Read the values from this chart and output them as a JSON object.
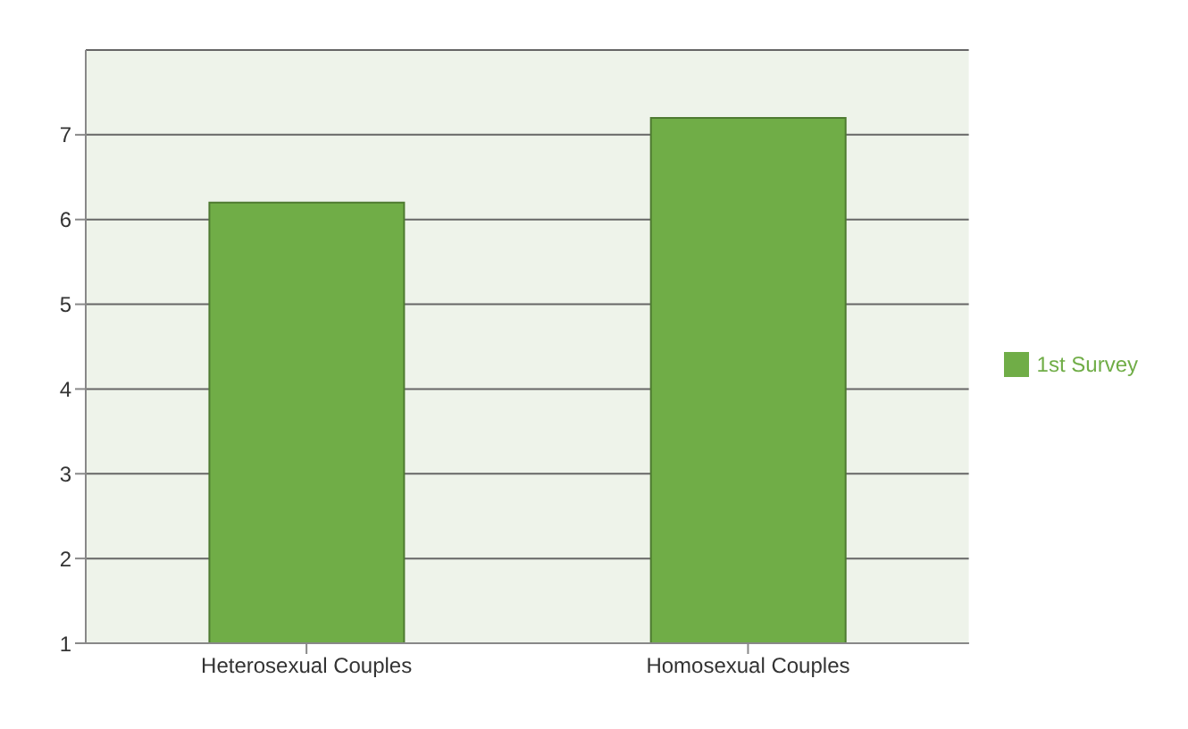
{
  "chart_data": {
    "type": "bar",
    "categories": [
      "Heterosexual Couples",
      "Homosexual Couples"
    ],
    "series": [
      {
        "name": "1st Survey",
        "color": "#70ad47",
        "values": [
          6.2,
          7.2
        ]
      }
    ],
    "ylim": [
      1,
      8
    ],
    "yticks": [
      1,
      2,
      3,
      4,
      5,
      6,
      7
    ],
    "grid": "y",
    "legend": "right"
  }
}
